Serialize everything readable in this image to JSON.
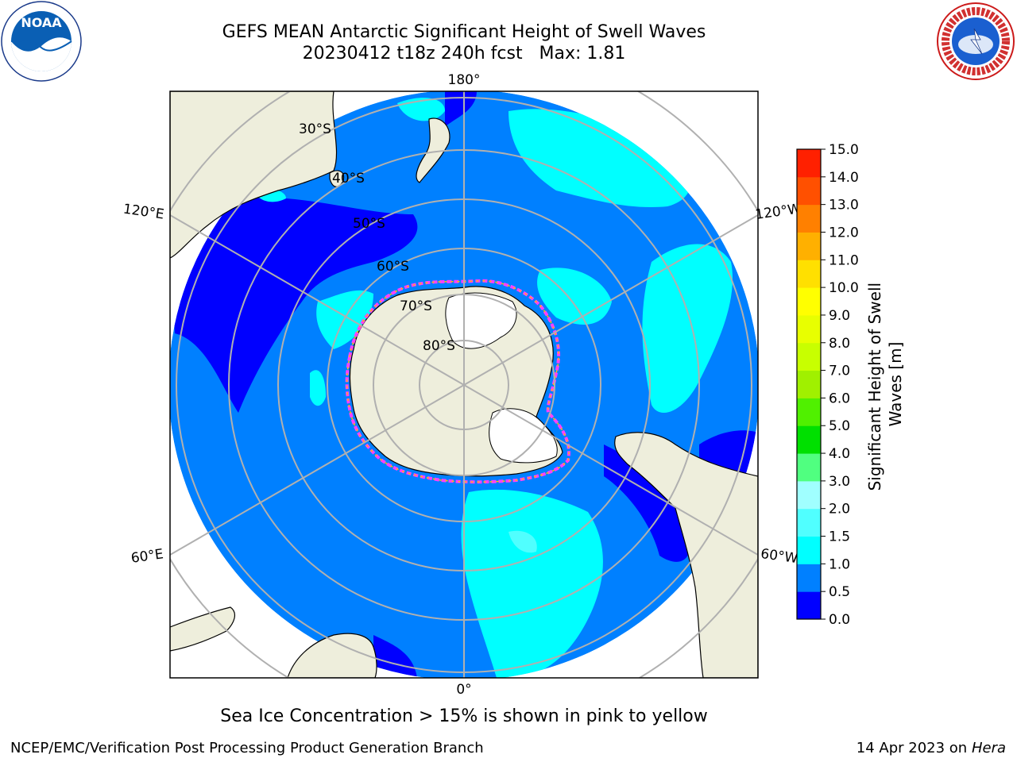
{
  "header": {
    "title_line1": "GEFS MEAN Antarctic Significant Height of Swell Waves",
    "title_line2": "20230412 t18z 240h fcst   Max: 1.81"
  },
  "map": {
    "projection": "south polar stereographic",
    "longitude_labels": [
      "180°",
      "120°E",
      "120°W",
      "60°E",
      "60°W",
      "0°"
    ],
    "latitude_labels": [
      "30°S",
      "40°S",
      "50°S",
      "60°S",
      "70°S",
      "80°S"
    ],
    "colors": {
      "land": "#eeeedc",
      "ice_shelf": "#ffffff",
      "grid": "#b0b0b0",
      "sea_ice_edge": [
        "#ff40ff",
        "#ffc000"
      ]
    }
  },
  "colorbar": {
    "label": "Significant Height of Swell Waves [m]",
    "ticks": [
      "0.0",
      "0.5",
      "1.0",
      "1.5",
      "2.0",
      "3.0",
      "4.0",
      "5.0",
      "6.0",
      "7.0",
      "8.0",
      "9.0",
      "10.0",
      "11.0",
      "12.0",
      "13.0",
      "14.0",
      "15.0"
    ],
    "colors": [
      "#0000ff",
      "#0080ff",
      "#00ffff",
      "#50ffff",
      "#a0ffff",
      "#50ff80",
      "#00e000",
      "#50f000",
      "#a0f000",
      "#c8ff00",
      "#e8ff00",
      "#ffff00",
      "#ffe000",
      "#ffb000",
      "#ff8000",
      "#ff5000",
      "#ff2000"
    ]
  },
  "caption": "Sea Ice Concentration > 15% is shown in pink to yellow",
  "footer": {
    "left": "NCEP/EMC/Verification Post Processing Product Generation Branch",
    "right_date": "14 Apr 2023 on ",
    "right_machine": "Hera"
  },
  "logos": {
    "noaa_text": "NOAA",
    "nws_text": "NATIONAL WEATHER SERVICE"
  }
}
